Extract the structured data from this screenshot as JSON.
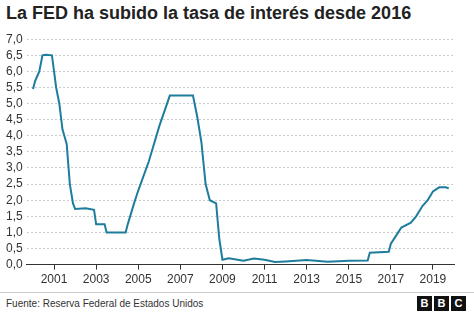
{
  "chart_data": {
    "type": "line",
    "title": "La FED ha subido la tasa de interés desde 2016",
    "source": "Fuente: Reserva Federal de Estados Unidos",
    "logo": "BBC",
    "color": "#1e7d9c",
    "x": [
      2000.0,
      2000.1,
      2000.2,
      2000.3,
      2000.45,
      2000.6,
      2000.9,
      2001.0,
      2001.1,
      2001.25,
      2001.4,
      2001.6,
      2001.75,
      2001.9,
      2002.0,
      2002.5,
      2002.9,
      2003.0,
      2003.4,
      2003.5,
      2004.4,
      2004.5,
      2004.8,
      2005.0,
      2005.5,
      2006.0,
      2006.5,
      2007.6,
      2007.8,
      2008.0,
      2008.2,
      2008.4,
      2008.7,
      2008.85,
      2009.0,
      2009.3,
      2010.0,
      2010.5,
      2011.0,
      2011.5,
      2012.0,
      2013.0,
      2014.0,
      2015.0,
      2015.9,
      2016.0,
      2016.9,
      2017.0,
      2017.25,
      2017.5,
      2017.95,
      2018.2,
      2018.5,
      2018.75,
      2019.0,
      2019.3,
      2019.6,
      2019.75
    ],
    "values": [
      5.45,
      5.7,
      5.85,
      6.0,
      6.5,
      6.52,
      6.5,
      6.0,
      5.5,
      5.0,
      4.2,
      3.75,
      2.5,
      1.9,
      1.73,
      1.75,
      1.7,
      1.25,
      1.25,
      1.0,
      1.0,
      1.25,
      1.9,
      2.3,
      3.2,
      4.3,
      5.25,
      5.25,
      4.6,
      3.8,
      2.5,
      2.0,
      1.9,
      0.8,
      0.15,
      0.2,
      0.12,
      0.19,
      0.15,
      0.08,
      0.1,
      0.14,
      0.09,
      0.12,
      0.13,
      0.37,
      0.4,
      0.65,
      0.9,
      1.15,
      1.3,
      1.5,
      1.82,
      2.0,
      2.27,
      2.4,
      2.4,
      2.37
    ],
    "xlim": [
      1999.7,
      2020.0
    ],
    "xticks": [
      2001,
      2003,
      2005,
      2007,
      2009,
      2011,
      2013,
      2015,
      2017,
      2019
    ],
    "ylim": [
      0,
      7
    ],
    "yticks": [
      {
        "value": 0,
        "label": "0,0"
      },
      {
        "value": 0.5,
        "label": "0,5"
      },
      {
        "value": 1,
        "label": "1,0"
      },
      {
        "value": 1.5,
        "label": "1,5"
      },
      {
        "value": 2,
        "label": "2,0"
      },
      {
        "value": 2.5,
        "label": "2,5"
      },
      {
        "value": 3,
        "label": "3,0"
      },
      {
        "value": 3.5,
        "label": "3,5"
      },
      {
        "value": 4,
        "label": "4,0"
      },
      {
        "value": 4.5,
        "label": "4,5"
      },
      {
        "value": 5,
        "label": "5,0"
      },
      {
        "value": 5.5,
        "label": "5,5"
      },
      {
        "value": 6,
        "label": "6,0"
      },
      {
        "value": 6.5,
        "label": "6,5"
      },
      {
        "value": 7,
        "label": "7,0"
      }
    ],
    "grid": true
  }
}
